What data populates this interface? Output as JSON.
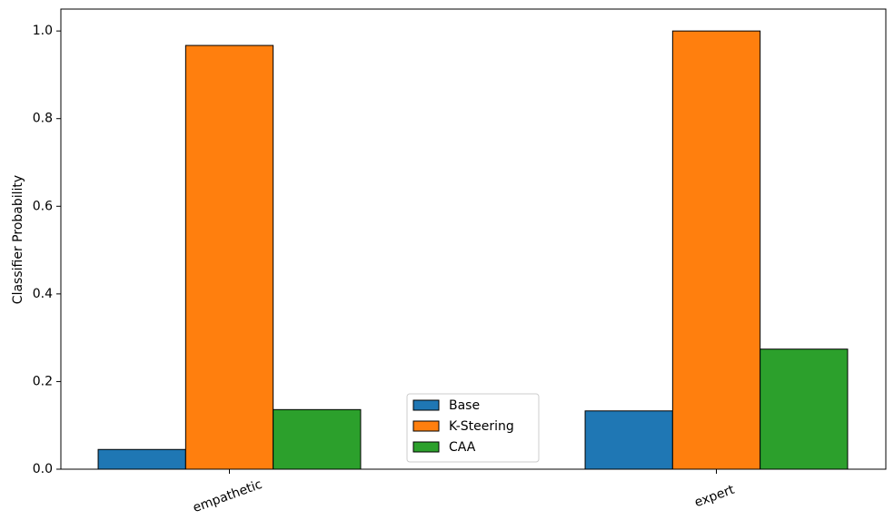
{
  "chart_data": {
    "type": "bar",
    "y_label": "Classifier Probability",
    "categories": [
      "empathetic",
      "expert"
    ],
    "series": [
      {
        "name": "Base",
        "color": "#1f77b4",
        "values": [
          0.045,
          0.133
        ]
      },
      {
        "name": "K-Steering",
        "color": "#ff7f0e",
        "values": [
          0.967,
          1.0
        ]
      },
      {
        "name": "CAA",
        "color": "#2ca02c",
        "values": [
          0.136,
          0.274
        ]
      }
    ],
    "ylim": [
      0,
      1.05
    ],
    "yticks": [
      {
        "value": 0,
        "label": "0.0"
      },
      0.2,
      0.4,
      0.6,
      0.8,
      {
        "value": 1,
        "label": "1.0"
      }
    ],
    "legend": "lower center",
    "grid": false
  }
}
